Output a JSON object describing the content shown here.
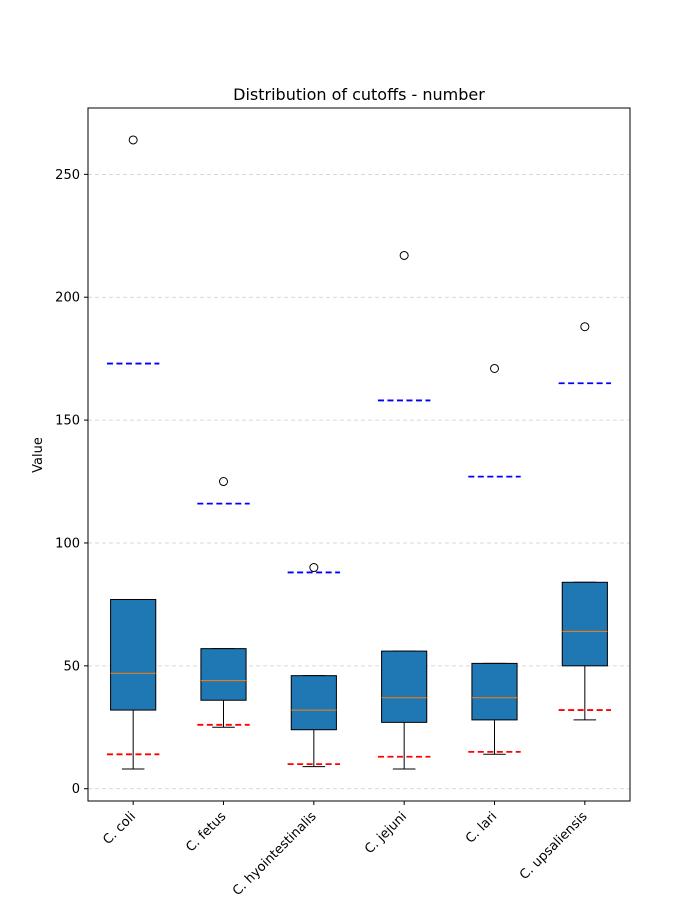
{
  "chart_data": {
    "type": "boxplot",
    "title": "Distribution of cutoffs - number",
    "xlabel": "",
    "ylabel": "Value",
    "ylim": [
      -5,
      277
    ],
    "yticks": [
      0,
      50,
      100,
      150,
      200,
      250
    ],
    "grid": "horizontal dashed",
    "categories": [
      "C. coli",
      "C. fetus",
      "C. hyointestinalis",
      "C. jejuni",
      "C. lari",
      "C. upsaliensis"
    ],
    "boxes": [
      {
        "whislo": 8,
        "q1": 32,
        "med": 47,
        "q3": 77,
        "whishi": 77,
        "fliers": [
          264
        ],
        "low_cutoff": 14,
        "high_cutoff": 173
      },
      {
        "whislo": 25,
        "q1": 36,
        "med": 44,
        "q3": 57,
        "whishi": 57,
        "fliers": [
          125
        ],
        "low_cutoff": 26,
        "high_cutoff": 116
      },
      {
        "whislo": 9,
        "q1": 24,
        "med": 32,
        "q3": 46,
        "whishi": 46,
        "fliers": [
          90
        ],
        "low_cutoff": 10,
        "high_cutoff": 88
      },
      {
        "whislo": 8,
        "q1": 27,
        "med": 37,
        "q3": 56,
        "whishi": 56,
        "fliers": [
          217
        ],
        "low_cutoff": 13,
        "high_cutoff": 158
      },
      {
        "whislo": 14,
        "q1": 28,
        "med": 37,
        "q3": 51,
        "whishi": 51,
        "fliers": [
          171
        ],
        "low_cutoff": 15,
        "high_cutoff": 127
      },
      {
        "whislo": 28,
        "q1": 50,
        "med": 64,
        "q3": 84,
        "whishi": 84,
        "fliers": [
          188
        ],
        "low_cutoff": 32,
        "high_cutoff": 165
      }
    ],
    "colors": {
      "box_fill": "#1f77b4",
      "median": "#ff7f0e",
      "low_cutoff_line": "#ff0000",
      "high_cutoff_line": "#0000ff",
      "grid": "#cccccc"
    }
  }
}
